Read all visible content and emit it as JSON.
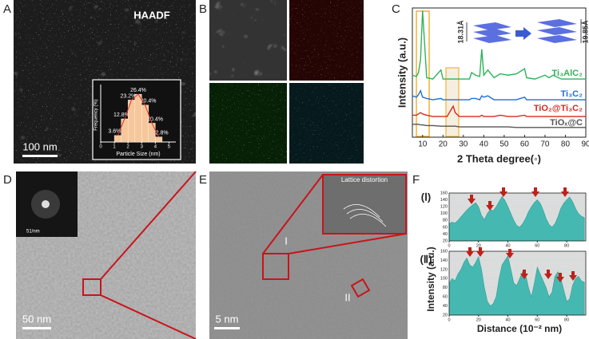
{
  "panel_labels": [
    "A",
    "B",
    "C",
    "D",
    "E",
    "F"
  ],
  "panel_a": {
    "label": "HAADF",
    "scale_bar": "100 nm"
  },
  "panel_c": {
    "spacing_labels": [
      "18.31Å",
      "19.85Å"
    ]
  },
  "panel_d": {
    "inset_scale": "51/nm",
    "scale_bar": "50 nm"
  },
  "panel_e": {
    "inset_label": "Lattice distortion",
    "region_labels": [
      "I",
      "II"
    ],
    "scale_bar": "5 nm"
  },
  "panel_f": {
    "profile_labels": [
      "(Ⅰ)",
      "(Ⅱ)"
    ],
    "y_label": "Intensity (a.u.)",
    "x_label": "Distance (10⁻² nm)"
  },
  "chart_data": [
    {
      "type": "histogram",
      "x_label": "Particle Size (nm)",
      "y_label": "Frequency (%)",
      "bins": [
        1,
        1.5,
        2,
        2.5,
        3,
        3.5,
        4,
        4.5
      ],
      "values": [
        3.6,
        12.8,
        23.2,
        26.4,
        20.4,
        10.4,
        2.8
      ],
      "value_labels": [
        "3.6%",
        "12.8%",
        "23.2%",
        "26.4%",
        "20.4%",
        "10.4%",
        "2.8%"
      ],
      "color": "#f6c79a",
      "xlim": [
        0,
        5.5
      ],
      "xticks": [
        0,
        1,
        2,
        3,
        4,
        5
      ],
      "ylim": [
        0,
        30
      ]
    },
    {
      "type": "line",
      "x_label": "2 Theta degree(◦)",
      "y_label": "Intensity (a.u.)",
      "x": [
        5,
        7,
        8,
        9,
        10,
        12,
        15,
        19,
        20,
        22,
        25,
        26,
        28,
        33,
        34,
        36,
        38,
        39,
        40,
        42,
        45,
        48,
        52,
        56,
        60,
        61,
        65,
        70,
        72,
        74,
        78,
        82,
        86,
        90
      ],
      "series": [
        {
          "name": "Ti₃AlC₂",
          "color": "#2fb25a",
          "values": [
            48,
            47,
            50,
            60,
            98,
            46,
            45,
            52,
            45,
            45,
            45,
            45,
            45,
            45,
            50,
            48,
            47,
            68,
            48,
            52,
            46,
            49,
            48,
            49,
            53,
            46,
            45,
            48,
            46,
            48,
            45,
            45,
            45,
            45
          ]
        },
        {
          "name": "Ti₃C₂",
          "color": "#1f6fd8",
          "values": [
            32,
            31,
            33,
            36,
            31,
            30,
            29,
            30,
            29,
            29,
            29,
            29,
            29,
            29,
            30,
            30,
            29,
            32,
            31,
            32,
            29,
            29,
            29,
            29,
            31,
            29,
            29,
            29,
            29,
            29,
            29,
            29,
            29,
            29
          ]
        },
        {
          "name": "TiO₂@Ti₃C₂",
          "color": "#d42a1e",
          "values": [
            17,
            17,
            18,
            19,
            18,
            17,
            16,
            16,
            16,
            16,
            24,
            19,
            16,
            16,
            16,
            16,
            16,
            17,
            16,
            16,
            16,
            17,
            16,
            16,
            17,
            16,
            16,
            16,
            16,
            16,
            16,
            16,
            16,
            16
          ]
        },
        {
          "name": "TiOₓ@C",
          "color": "#555555",
          "values": [
            10,
            10,
            10,
            9.5,
            9.5,
            9,
            9,
            8.5,
            8.5,
            8.5,
            8.5,
            8.5,
            8,
            8,
            8,
            8,
            8,
            8,
            8,
            8,
            8,
            8,
            8,
            7.5,
            7.5,
            7.5,
            7.5,
            7.5,
            7.5,
            7.5,
            7.5,
            7.5,
            7.5,
            7.5
          ]
        }
      ],
      "xlim": [
        5,
        90
      ],
      "xticks": [
        10,
        20,
        30,
        40,
        50,
        60,
        70,
        80,
        90
      ],
      "ylim": [
        0,
        100
      ]
    },
    {
      "type": "area",
      "color": "#45b9b1",
      "x": [
        0,
        2,
        4,
        6,
        8,
        10,
        12,
        14,
        16,
        18,
        20,
        22,
        24,
        26,
        28,
        30,
        32,
        34,
        36,
        38,
        40,
        42,
        44,
        46,
        48,
        50,
        52,
        54,
        56,
        58,
        60,
        62,
        64,
        66,
        68,
        70,
        72,
        74,
        76,
        78,
        80,
        82,
        84,
        86,
        88,
        90,
        92
      ],
      "values": [
        70,
        75,
        72,
        80,
        90,
        100,
        110,
        118,
        125,
        132,
        120,
        95,
        82,
        100,
        112,
        108,
        120,
        135,
        150,
        138,
        120,
        100,
        80,
        65,
        60,
        70,
        85,
        105,
        120,
        132,
        140,
        130,
        110,
        85,
        68,
        60,
        70,
        90,
        115,
        130,
        140,
        148,
        135,
        115,
        100,
        92,
        88
      ],
      "xlim": [
        0,
        93
      ],
      "xticks": [
        0,
        20,
        40,
        60,
        80
      ],
      "ylim": [
        20,
        160
      ],
      "yticks": [
        20,
        40,
        60,
        80,
        100,
        120,
        140,
        160
      ]
    },
    {
      "type": "area",
      "color": "#45b9b1",
      "x": [
        0,
        2,
        4,
        6,
        8,
        10,
        12,
        14,
        16,
        18,
        20,
        22,
        24,
        26,
        28,
        30,
        32,
        34,
        36,
        38,
        40,
        42,
        44,
        46,
        48,
        50,
        52,
        54,
        56,
        58,
        60,
        62,
        64,
        66,
        68,
        70,
        72,
        74,
        76,
        78,
        80,
        82,
        84,
        86,
        88,
        90,
        92
      ],
      "values": [
        90,
        100,
        95,
        110,
        120,
        135,
        145,
        130,
        125,
        135,
        148,
        120,
        80,
        50,
        40,
        45,
        60,
        100,
        130,
        140,
        150,
        120,
        90,
        85,
        100,
        115,
        110,
        80,
        60,
        90,
        125,
        110,
        95,
        80,
        60,
        70,
        105,
        115,
        100,
        75,
        50,
        55,
        85,
        100,
        105,
        95,
        92
      ],
      "xlim": [
        0,
        93
      ],
      "xticks": [
        0,
        20,
        40,
        60,
        80
      ],
      "ylim": [
        20,
        160
      ],
      "yticks": [
        20,
        40,
        60,
        80,
        100,
        120,
        140,
        160
      ]
    }
  ]
}
